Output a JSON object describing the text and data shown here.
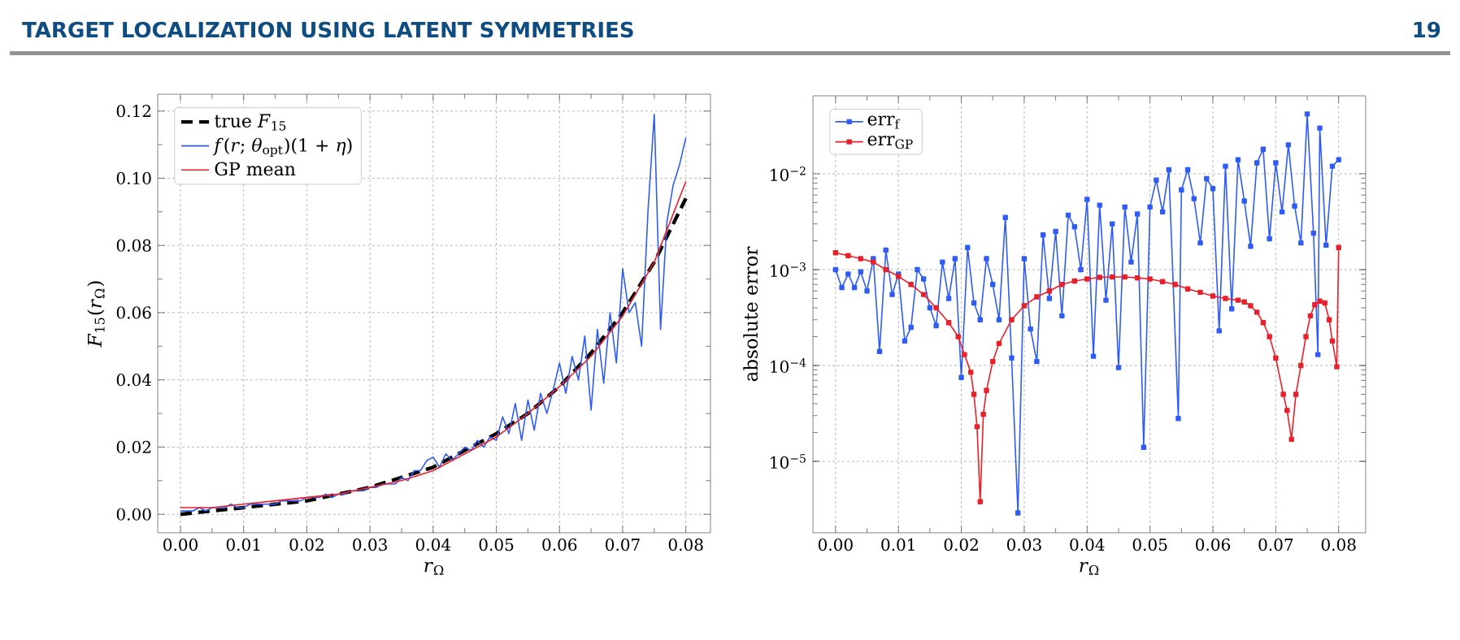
{
  "chart_data": [
    {
      "type": "line",
      "xlabel": "*r*$_{Ω}$",
      "ylabel": "*F*$_{15}$(*r*$_{Ω}$)",
      "annotations": [
        "TARGET LOCALIZATION USING LATENT SYMMETRIES",
        "19"
      ],
      "xlim": [
        -0.0036,
        0.0839
      ],
      "ylim": [
        -0.0055,
        0.125
      ],
      "xticks": [
        {
          "value": 0,
          "label": "0.00"
        },
        {
          "value": 0.01,
          "label": "0.01"
        },
        {
          "value": 0.02,
          "label": "0.02"
        },
        {
          "value": 0.03,
          "label": "0.03"
        },
        {
          "value": 0.04,
          "label": "0.04"
        },
        {
          "value": 0.05,
          "label": "0.05"
        },
        {
          "value": 0.06,
          "label": "0.06"
        },
        {
          "value": 0.07,
          "label": "0.07"
        },
        {
          "value": 0.08,
          "label": "0.08"
        }
      ],
      "yticks": [
        {
          "value": 0,
          "label": "0.00"
        },
        {
          "value": 0.02,
          "label": "0.02"
        },
        {
          "value": 0.04,
          "label": "0.04"
        },
        {
          "value": 0.06,
          "label": "0.06"
        },
        {
          "value": 0.08,
          "label": "0.08"
        },
        {
          "value": 0.1,
          "label": "0.10"
        },
        {
          "value": 0.12,
          "label": "0.12"
        }
      ],
      "grid": true,
      "legend": "top left",
      "series": [
        {
          "name": "true *F*$_{15}$",
          "color": "#000000",
          "line_style": "dashed",
          "x": [
            0,
            0.005,
            0.01,
            0.015,
            0.02,
            0.025,
            0.03,
            0.035,
            0.04,
            0.045,
            0.05,
            0.055,
            0.06,
            0.065,
            0.07,
            0.075,
            0.08
          ],
          "values": [
            0.0,
            0.001,
            0.002,
            0.003,
            0.004,
            0.006,
            0.008,
            0.011,
            0.014,
            0.019,
            0.024,
            0.03,
            0.038,
            0.048,
            0.06,
            0.075,
            0.094
          ]
        },
        {
          "name": "*f*(*r*; *θ*$_{opt}$)(1 + *η*)",
          "color": "#2f5cf5",
          "x": [
            0,
            0.001,
            0.002,
            0.003,
            0.004,
            0.005,
            0.006,
            0.007,
            0.008,
            0.009,
            0.01,
            0.011,
            0.012,
            0.013,
            0.014,
            0.015,
            0.016,
            0.017,
            0.018,
            0.019,
            0.02,
            0.021,
            0.022,
            0.023,
            0.024,
            0.025,
            0.026,
            0.027,
            0.028,
            0.029,
            0.03,
            0.031,
            0.032,
            0.033,
            0.034,
            0.035,
            0.036,
            0.037,
            0.038,
            0.039,
            0.04,
            0.041,
            0.042,
            0.043,
            0.044,
            0.045,
            0.046,
            0.047,
            0.048,
            0.049,
            0.05,
            0.051,
            0.052,
            0.053,
            0.054,
            0.055,
            0.056,
            0.057,
            0.058,
            0.059,
            0.06,
            0.061,
            0.062,
            0.063,
            0.064,
            0.065,
            0.066,
            0.067,
            0.068,
            0.069,
            0.07,
            0.071,
            0.072,
            0.073,
            0.074,
            0.075,
            0.076,
            0.077,
            0.078,
            0.079,
            0.08
          ],
          "values": [
            0.001,
            0.001,
            0.001,
            0.002,
            0.001,
            0.002,
            0.002,
            0.002,
            0.003,
            0.002,
            0.002,
            0.003,
            0.003,
            0.003,
            0.003,
            0.003,
            0.004,
            0.004,
            0.004,
            0.004,
            0.005,
            0.005,
            0.005,
            0.006,
            0.005,
            0.006,
            0.006,
            0.007,
            0.007,
            0.007,
            0.008,
            0.008,
            0.009,
            0.009,
            0.009,
            0.011,
            0.01,
            0.013,
            0.013,
            0.016,
            0.017,
            0.014,
            0.018,
            0.016,
            0.018,
            0.02,
            0.019,
            0.022,
            0.02,
            0.023,
            0.022,
            0.029,
            0.024,
            0.033,
            0.022,
            0.034,
            0.025,
            0.036,
            0.03,
            0.037,
            0.045,
            0.036,
            0.047,
            0.04,
            0.053,
            0.031,
            0.055,
            0.039,
            0.06,
            0.045,
            0.073,
            0.06,
            0.063,
            0.05,
            0.09,
            0.119,
            0.055,
            0.087,
            0.098,
            0.104,
            0.112
          ]
        },
        {
          "name": "GP mean",
          "color": "#e8202a",
          "x": [
            0,
            0.005,
            0.01,
            0.015,
            0.02,
            0.025,
            0.03,
            0.035,
            0.04,
            0.045,
            0.05,
            0.055,
            0.06,
            0.065,
            0.07,
            0.075,
            0.08
          ],
          "values": [
            0.002,
            0.002,
            0.003,
            0.004,
            0.005,
            0.006,
            0.008,
            0.01,
            0.013,
            0.018,
            0.023,
            0.03,
            0.038,
            0.047,
            0.059,
            0.075,
            0.099
          ]
        }
      ]
    },
    {
      "type": "line",
      "xlabel": "*r*$_{Ω}$",
      "ylabel": "absolute error",
      "log": "y",
      "marker": "square",
      "xlim": [
        -0.0036,
        0.0843
      ],
      "ylim": [
        1.8e-06,
        0.065
      ],
      "xticks": [
        {
          "value": 0,
          "label": "0.00"
        },
        {
          "value": 0.01,
          "label": "0.01"
        },
        {
          "value": 0.02,
          "label": "0.02"
        },
        {
          "value": 0.03,
          "label": "0.03"
        },
        {
          "value": 0.04,
          "label": "0.04"
        },
        {
          "value": 0.05,
          "label": "0.05"
        },
        {
          "value": 0.06,
          "label": "0.06"
        },
        {
          "value": 0.07,
          "label": "0.07"
        },
        {
          "value": 0.08,
          "label": "0.08"
        }
      ],
      "yticks": [
        {
          "value": 1e-05,
          "label": "10$^{−5}$"
        },
        {
          "value": 0.0001,
          "label": "10$^{−4}$"
        },
        {
          "value": 0.001,
          "label": "10$^{−3}$"
        },
        {
          "value": 0.01,
          "label": "10$^{−2}$"
        }
      ],
      "grid": true,
      "legend": "top left",
      "series": [
        {
          "name": "err$_{f}$",
          "color": "#2f5cf5",
          "x": [
            0,
            0.001,
            0.002,
            0.003,
            0.004,
            0.005,
            0.006,
            0.007,
            0.008,
            0.009,
            0.01,
            0.011,
            0.012,
            0.013,
            0.014,
            0.015,
            0.016,
            0.017,
            0.018,
            0.019,
            0.02,
            0.021,
            0.022,
            0.023,
            0.024,
            0.025,
            0.026,
            0.027,
            0.028,
            0.029,
            0.03,
            0.031,
            0.032,
            0.033,
            0.034,
            0.035,
            0.036,
            0.037,
            0.038,
            0.039,
            0.04,
            0.041,
            0.042,
            0.043,
            0.044,
            0.045,
            0.046,
            0.047,
            0.048,
            0.049,
            0.05,
            0.051,
            0.052,
            0.053,
            0.0545,
            0.055,
            0.056,
            0.057,
            0.058,
            0.059,
            0.06,
            0.061,
            0.062,
            0.063,
            0.064,
            0.065,
            0.066,
            0.067,
            0.068,
            0.069,
            0.07,
            0.071,
            0.072,
            0.073,
            0.074,
            0.075,
            0.076,
            0.0767,
            0.077,
            0.078,
            0.079,
            0.08
          ],
          "values": [
            0.001,
            0.00065,
            0.0009,
            0.00065,
            0.00095,
            0.0006,
            0.0013,
            0.00014,
            0.0016,
            0.00055,
            0.0009,
            0.00018,
            0.00025,
            0.001,
            0.0008,
            0.0004,
            0.00026,
            0.0012,
            0.0005,
            0.0013,
            7.5e-05,
            0.0017,
            0.00045,
            0.0003,
            0.0013,
            0.0007,
            0.0003,
            0.0035,
            0.00012,
            2.9e-06,
            0.0013,
            0.00024,
            0.00011,
            0.0023,
            0.0005,
            0.0025,
            0.00033,
            0.0037,
            0.0028,
            0.001,
            0.0054,
            0.000125,
            0.0047,
            0.00048,
            0.003,
            9.5e-05,
            0.0045,
            0.0012,
            0.0038,
            1.4e-05,
            0.0045,
            0.0086,
            0.004,
            0.011,
            2.8e-05,
            0.0068,
            0.011,
            0.0055,
            0.0019,
            0.0089,
            0.007,
            0.00023,
            0.012,
            0.00039,
            0.014,
            0.0052,
            0.00175,
            0.013,
            0.018,
            0.0021,
            0.013,
            0.004,
            0.02,
            0.0046,
            0.0019,
            0.042,
            0.0024,
            0.00013,
            0.03,
            0.0018,
            0.012,
            0.014
          ]
        },
        {
          "name": "err$_{GP}$",
          "color": "#e8202a",
          "x": [
            0,
            0.002,
            0.004,
            0.006,
            0.008,
            0.01,
            0.012,
            0.014,
            0.016,
            0.018,
            0.0195,
            0.0205,
            0.0215,
            0.022,
            0.0225,
            0.023,
            0.0235,
            0.024,
            0.025,
            0.026,
            0.028,
            0.03,
            0.032,
            0.034,
            0.036,
            0.038,
            0.04,
            0.042,
            0.044,
            0.046,
            0.048,
            0.05,
            0.052,
            0.054,
            0.056,
            0.058,
            0.06,
            0.062,
            0.064,
            0.065,
            0.066,
            0.067,
            0.068,
            0.069,
            0.07,
            0.0712,
            0.0718,
            0.0725,
            0.0732,
            0.074,
            0.0748,
            0.0755,
            0.0762,
            0.077,
            0.0778,
            0.0785,
            0.079,
            0.0797,
            0.08
          ],
          "values": [
            0.0015,
            0.0014,
            0.0013,
            0.0012,
            0.001,
            0.00085,
            0.0007,
            0.00055,
            0.0004,
            0.00028,
            0.0002,
            0.00013,
            8.5e-05,
            5e-05,
            2.3e-05,
            3.8e-06,
            3.1e-05,
            5.5e-05,
            0.00011,
            0.00017,
            0.0003,
            0.00042,
            0.00052,
            0.0006,
            0.0007,
            0.00076,
            0.0008,
            0.00083,
            0.00084,
            0.00084,
            0.00082,
            0.0008,
            0.00075,
            0.0007,
            0.00063,
            0.00058,
            0.00053,
            0.0005,
            0.00048,
            0.00046,
            0.00042,
            0.00036,
            0.00028,
            0.0002,
            0.00012,
            5e-05,
            3.4e-05,
            1.7e-05,
            5e-05,
            0.0001,
            0.0002,
            0.00033,
            0.00043,
            0.00047,
            0.00045,
            0.0003,
            0.00018,
            9.7e-05,
            0.0017
          ]
        }
      ]
    }
  ]
}
